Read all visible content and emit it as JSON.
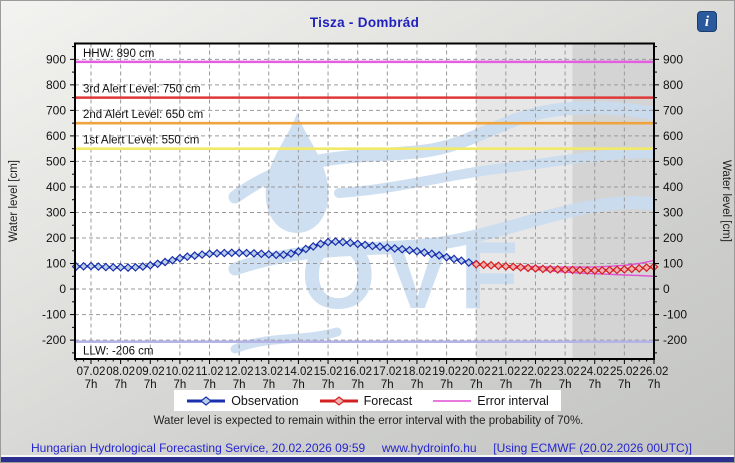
{
  "header": {
    "title": "Tisza - Dombrád",
    "info_glyph": "i"
  },
  "chart_data": {
    "type": "line",
    "title": "Tisza - Dombrád",
    "x_unit": "days since 07.02 07:00",
    "x_axis": {
      "dates": [
        "07.02",
        "08.02",
        "09.02",
        "10.02",
        "11.02",
        "12.02",
        "13.02",
        "14.02",
        "15.02",
        "16.02",
        "17.02",
        "18.02",
        "19.02",
        "20.02",
        "21.02",
        "22.02",
        "23.02",
        "24.02",
        "25.02",
        "26.02"
      ],
      "hour_label": "7h"
    },
    "y_axis": {
      "label": "Water level [cm]",
      "ticks": [
        -200,
        -100,
        0,
        100,
        200,
        300,
        400,
        500,
        600,
        700,
        800,
        900
      ],
      "range": [
        -274,
        962
      ]
    },
    "regions": {
      "forecast_start_day": 13,
      "far_forecast_start_day": 16.25,
      "end_day": 19,
      "forecast_fill": "#e7e7e7",
      "far_forecast_fill": "#d4d4d4"
    },
    "reference_lines": [
      {
        "label": "HHW: 890 cm",
        "value": 890,
        "color": "#e45fe0"
      },
      {
        "label": "3rd Alert Level: 750 cm",
        "value": 750,
        "color": "#e03838"
      },
      {
        "label": "2nd Alert Level: 650 cm",
        "value": 650,
        "color": "#efa33c"
      },
      {
        "label": "1st Alert Level: 550 cm",
        "value": 550,
        "color": "#f2ea67"
      },
      {
        "label": "LLW: -206 cm",
        "value": -206,
        "color": "#b4b4e6",
        "label_below": true
      }
    ],
    "series": [
      {
        "name": "Observation",
        "color": "#1a2fae",
        "marker_fill": "#b9cfe8",
        "points": [
          [
            -0.5,
            88
          ],
          [
            -0.25,
            89
          ],
          [
            0,
            90
          ],
          [
            0.25,
            88
          ],
          [
            0.5,
            86
          ],
          [
            0.75,
            85
          ],
          [
            1,
            85
          ],
          [
            1.25,
            84
          ],
          [
            1.5,
            85
          ],
          [
            1.75,
            88
          ],
          [
            2,
            93
          ],
          [
            2.25,
            99
          ],
          [
            2.5,
            106
          ],
          [
            2.75,
            113
          ],
          [
            3,
            121
          ],
          [
            3.25,
            127
          ],
          [
            3.5,
            131
          ],
          [
            3.75,
            135
          ],
          [
            4,
            138
          ],
          [
            4.25,
            140
          ],
          [
            4.5,
            141
          ],
          [
            4.75,
            142
          ],
          [
            5,
            142
          ],
          [
            5.25,
            141
          ],
          [
            5.5,
            140
          ],
          [
            5.75,
            138
          ],
          [
            6,
            136
          ],
          [
            6.25,
            134
          ],
          [
            6.5,
            134
          ],
          [
            6.75,
            139
          ],
          [
            7,
            147
          ],
          [
            7.25,
            157
          ],
          [
            7.5,
            167
          ],
          [
            7.75,
            177
          ],
          [
            8,
            184
          ],
          [
            8.25,
            186
          ],
          [
            8.5,
            184
          ],
          [
            8.75,
            181
          ],
          [
            9,
            177
          ],
          [
            9.25,
            173
          ],
          [
            9.5,
            169
          ],
          [
            9.75,
            166
          ],
          [
            10,
            162
          ],
          [
            10.25,
            159
          ],
          [
            10.5,
            156
          ],
          [
            10.75,
            152
          ],
          [
            11,
            148
          ],
          [
            11.25,
            143
          ],
          [
            11.5,
            138
          ],
          [
            11.75,
            132
          ],
          [
            12,
            125
          ],
          [
            12.25,
            118
          ],
          [
            12.5,
            111
          ],
          [
            12.75,
            104
          ],
          [
            13,
            98
          ]
        ]
      },
      {
        "name": "Forecast",
        "color": "#d42020",
        "marker_fill": "#f2afaf",
        "points": [
          [
            13,
            97
          ],
          [
            13.25,
            95
          ],
          [
            13.5,
            93
          ],
          [
            13.75,
            91
          ],
          [
            14,
            89
          ],
          [
            14.25,
            87
          ],
          [
            14.5,
            85
          ],
          [
            14.75,
            83
          ],
          [
            15,
            81
          ],
          [
            15.25,
            79
          ],
          [
            15.5,
            78
          ],
          [
            15.75,
            77
          ],
          [
            16,
            76
          ],
          [
            16.25,
            75
          ],
          [
            16.5,
            74
          ],
          [
            16.75,
            73
          ],
          [
            17,
            73
          ],
          [
            17.25,
            73
          ],
          [
            17.5,
            74
          ],
          [
            17.75,
            75
          ],
          [
            18,
            77
          ],
          [
            18.25,
            79
          ],
          [
            18.5,
            81
          ],
          [
            18.75,
            84
          ],
          [
            19,
            87
          ]
        ]
      },
      {
        "name": "Error interval",
        "color": "#e14fd2",
        "top": [
          [
            13,
            97
          ],
          [
            13.5,
            94
          ],
          [
            14,
            92
          ],
          [
            14.5,
            90
          ],
          [
            15,
            88
          ],
          [
            15.5,
            87
          ],
          [
            16,
            86
          ],
          [
            16.5,
            86
          ],
          [
            17,
            87
          ],
          [
            17.5,
            89
          ],
          [
            18,
            93
          ],
          [
            18.5,
            100
          ],
          [
            19,
            112
          ]
        ],
        "bottom": [
          [
            13,
            97
          ],
          [
            13.5,
            91
          ],
          [
            14,
            86
          ],
          [
            14.5,
            81
          ],
          [
            15,
            76
          ],
          [
            15.5,
            71
          ],
          [
            16,
            67
          ],
          [
            16.5,
            63
          ],
          [
            17,
            60
          ],
          [
            17.5,
            58
          ],
          [
            18,
            55
          ],
          [
            18.5,
            53
          ],
          [
            19,
            50
          ]
        ]
      }
    ],
    "watermark_text": "OVF",
    "watermark_color": "#c9dcf0"
  },
  "note": "Water level is expected to remain within the error interval with the probability of 70%.",
  "footer": {
    "left": "Hungarian Hydrological Forecasting Service, 20.02.2026 09:59",
    "center": "www.hydroinfo.hu",
    "right": "[Using ECMWF (20.02.2026  00UTC)]"
  }
}
